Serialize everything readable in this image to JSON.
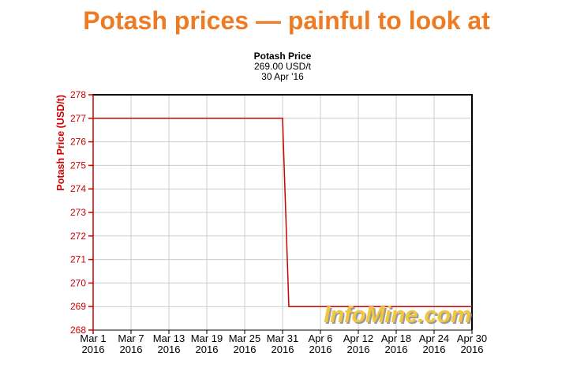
{
  "headline": {
    "text": "Potash prices — painful to look at"
  },
  "watermark": {
    "text": "InfoMine.com"
  },
  "colors": {
    "headline_orange": "#ee7b23",
    "series_red": "#cc0000",
    "axis_red": "#cc0000",
    "axis_black": "#000000",
    "grid_gray": "#cccccc",
    "watermark_gold": "#f2c63d"
  },
  "chart_data": {
    "type": "line",
    "title": "Potash Price",
    "subtitle": "269.00 USD/t",
    "subtitle_date": "30 Apr '16",
    "xlabel": "",
    "ylabel": "Potash Price (USD/t)",
    "ylim": [
      268,
      278
    ],
    "y_ticks": [
      268,
      269,
      270,
      271,
      272,
      273,
      274,
      275,
      276,
      277,
      278
    ],
    "x_range_days": 60,
    "x_ticks": [
      {
        "day": 0,
        "label": "Mar 1",
        "year": "2016"
      },
      {
        "day": 6,
        "label": "Mar 7",
        "year": "2016"
      },
      {
        "day": 12,
        "label": "Mar 13",
        "year": "2016"
      },
      {
        "day": 18,
        "label": "Mar 19",
        "year": "2016"
      },
      {
        "day": 24,
        "label": "Mar 25",
        "year": "2016"
      },
      {
        "day": 30,
        "label": "Mar 31",
        "year": "2016"
      },
      {
        "day": 36,
        "label": "Apr 6",
        "year": "2016"
      },
      {
        "day": 42,
        "label": "Apr 12",
        "year": "2016"
      },
      {
        "day": 48,
        "label": "Apr 18",
        "year": "2016"
      },
      {
        "day": 54,
        "label": "Apr 24",
        "year": "2016"
      },
      {
        "day": 60,
        "label": "Apr 30",
        "year": "2016"
      }
    ],
    "grid": true,
    "legend_position": "none",
    "series": [
      {
        "name": "Potash Price",
        "color": "#cc0000",
        "points": [
          [
            0,
            277
          ],
          [
            30,
            277
          ],
          [
            31,
            269
          ],
          [
            60,
            269
          ]
        ]
      }
    ]
  }
}
